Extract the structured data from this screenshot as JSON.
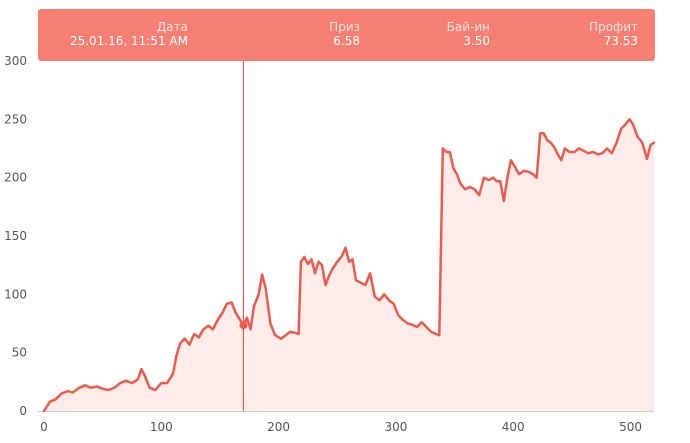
{
  "tooltip": {
    "date_label": "Дата",
    "date_value": "25.01.16, 11:51 AM",
    "prize_label": "Приз",
    "prize_value": "6.58",
    "buyin_label": "Бай-ин",
    "buyin_value": "3.50",
    "profit_label": "Профит",
    "profit_value": "73.53"
  },
  "colors": {
    "line": "#ee5a4c",
    "area": "#fdecea",
    "tooltip_bg": "#f47f72",
    "cursor": "#e04b3b",
    "axis": "#cccccc"
  },
  "chart_data": {
    "type": "area",
    "title": "",
    "xlabel": "",
    "ylabel": "",
    "xlim": [
      0,
      520
    ],
    "ylim": [
      0,
      300
    ],
    "x_ticks": [
      0,
      100,
      200,
      300,
      400,
      500
    ],
    "y_ticks": [
      0,
      50,
      100,
      150,
      200,
      250,
      300
    ],
    "grid": false,
    "cursor": {
      "x": 170,
      "y": 73.53
    },
    "series": [
      {
        "points": [
          [
            0,
            0
          ],
          [
            5,
            8
          ],
          [
            10,
            10
          ],
          [
            15,
            15
          ],
          [
            20,
            17
          ],
          [
            25,
            16
          ],
          [
            30,
            20
          ],
          [
            35,
            22
          ],
          [
            40,
            20
          ],
          [
            45,
            21
          ],
          [
            50,
            19
          ],
          [
            55,
            18
          ],
          [
            60,
            20
          ],
          [
            65,
            24
          ],
          [
            70,
            26
          ],
          [
            75,
            24
          ],
          [
            80,
            27
          ],
          [
            83,
            36
          ],
          [
            86,
            30
          ],
          [
            90,
            20
          ],
          [
            95,
            18
          ],
          [
            100,
            24
          ],
          [
            105,
            24
          ],
          [
            110,
            32
          ],
          [
            113,
            48
          ],
          [
            116,
            58
          ],
          [
            120,
            62
          ],
          [
            124,
            57
          ],
          [
            128,
            66
          ],
          [
            132,
            63
          ],
          [
            136,
            70
          ],
          [
            140,
            73
          ],
          [
            144,
            70
          ],
          [
            148,
            78
          ],
          [
            152,
            84
          ],
          [
            156,
            92
          ],
          [
            160,
            93
          ],
          [
            163,
            85
          ],
          [
            166,
            80
          ],
          [
            170,
            73.5
          ],
          [
            173,
            80
          ],
          [
            176,
            70
          ],
          [
            179,
            90
          ],
          [
            183,
            100
          ],
          [
            186,
            117
          ],
          [
            189,
            105
          ],
          [
            193,
            75
          ],
          [
            197,
            65
          ],
          [
            202,
            62
          ],
          [
            206,
            65
          ],
          [
            210,
            68
          ],
          [
            214,
            67
          ],
          [
            217,
            66
          ],
          [
            219,
            128
          ],
          [
            222,
            132
          ],
          [
            225,
            126
          ],
          [
            228,
            130
          ],
          [
            231,
            118
          ],
          [
            234,
            128
          ],
          [
            237,
            125
          ],
          [
            240,
            108
          ],
          [
            243,
            116
          ],
          [
            246,
            122
          ],
          [
            250,
            128
          ],
          [
            254,
            133
          ],
          [
            257,
            140
          ],
          [
            260,
            128
          ],
          [
            263,
            130
          ],
          [
            266,
            112
          ],
          [
            270,
            110
          ],
          [
            274,
            108
          ],
          [
            278,
            118
          ],
          [
            282,
            98
          ],
          [
            286,
            95
          ],
          [
            290,
            100
          ],
          [
            294,
            95
          ],
          [
            298,
            92
          ],
          [
            302,
            82
          ],
          [
            306,
            78
          ],
          [
            310,
            75
          ],
          [
            314,
            74
          ],
          [
            318,
            72
          ],
          [
            322,
            76
          ],
          [
            326,
            72
          ],
          [
            330,
            68
          ],
          [
            334,
            66
          ],
          [
            337,
            65
          ],
          [
            340,
            225
          ],
          [
            343,
            222
          ],
          [
            346,
            222
          ],
          [
            349,
            208
          ],
          [
            352,
            203
          ],
          [
            355,
            195
          ],
          [
            359,
            190
          ],
          [
            363,
            192
          ],
          [
            367,
            190
          ],
          [
            371,
            185
          ],
          [
            375,
            200
          ],
          [
            379,
            198
          ],
          [
            383,
            200
          ],
          [
            386,
            197
          ],
          [
            389,
            197
          ],
          [
            392,
            180
          ],
          [
            395,
            200
          ],
          [
            398,
            215
          ],
          [
            401,
            210
          ],
          [
            405,
            203
          ],
          [
            409,
            206
          ],
          [
            413,
            205
          ],
          [
            417,
            203
          ],
          [
            420,
            200
          ],
          [
            423,
            238
          ],
          [
            426,
            238
          ],
          [
            429,
            232
          ],
          [
            432,
            230
          ],
          [
            435,
            226
          ],
          [
            438,
            220
          ],
          [
            441,
            215
          ],
          [
            444,
            225
          ],
          [
            448,
            222
          ],
          [
            452,
            222
          ],
          [
            456,
            225
          ],
          [
            460,
            223
          ],
          [
            464,
            221
          ],
          [
            468,
            222
          ],
          [
            472,
            220
          ],
          [
            476,
            221
          ],
          [
            480,
            225
          ],
          [
            484,
            221
          ],
          [
            488,
            230
          ],
          [
            492,
            242
          ],
          [
            496,
            246
          ],
          [
            499,
            250
          ],
          [
            502,
            246
          ],
          [
            506,
            235
          ],
          [
            510,
            230
          ],
          [
            514,
            216
          ],
          [
            517,
            228
          ],
          [
            520,
            230
          ]
        ]
      }
    ]
  }
}
